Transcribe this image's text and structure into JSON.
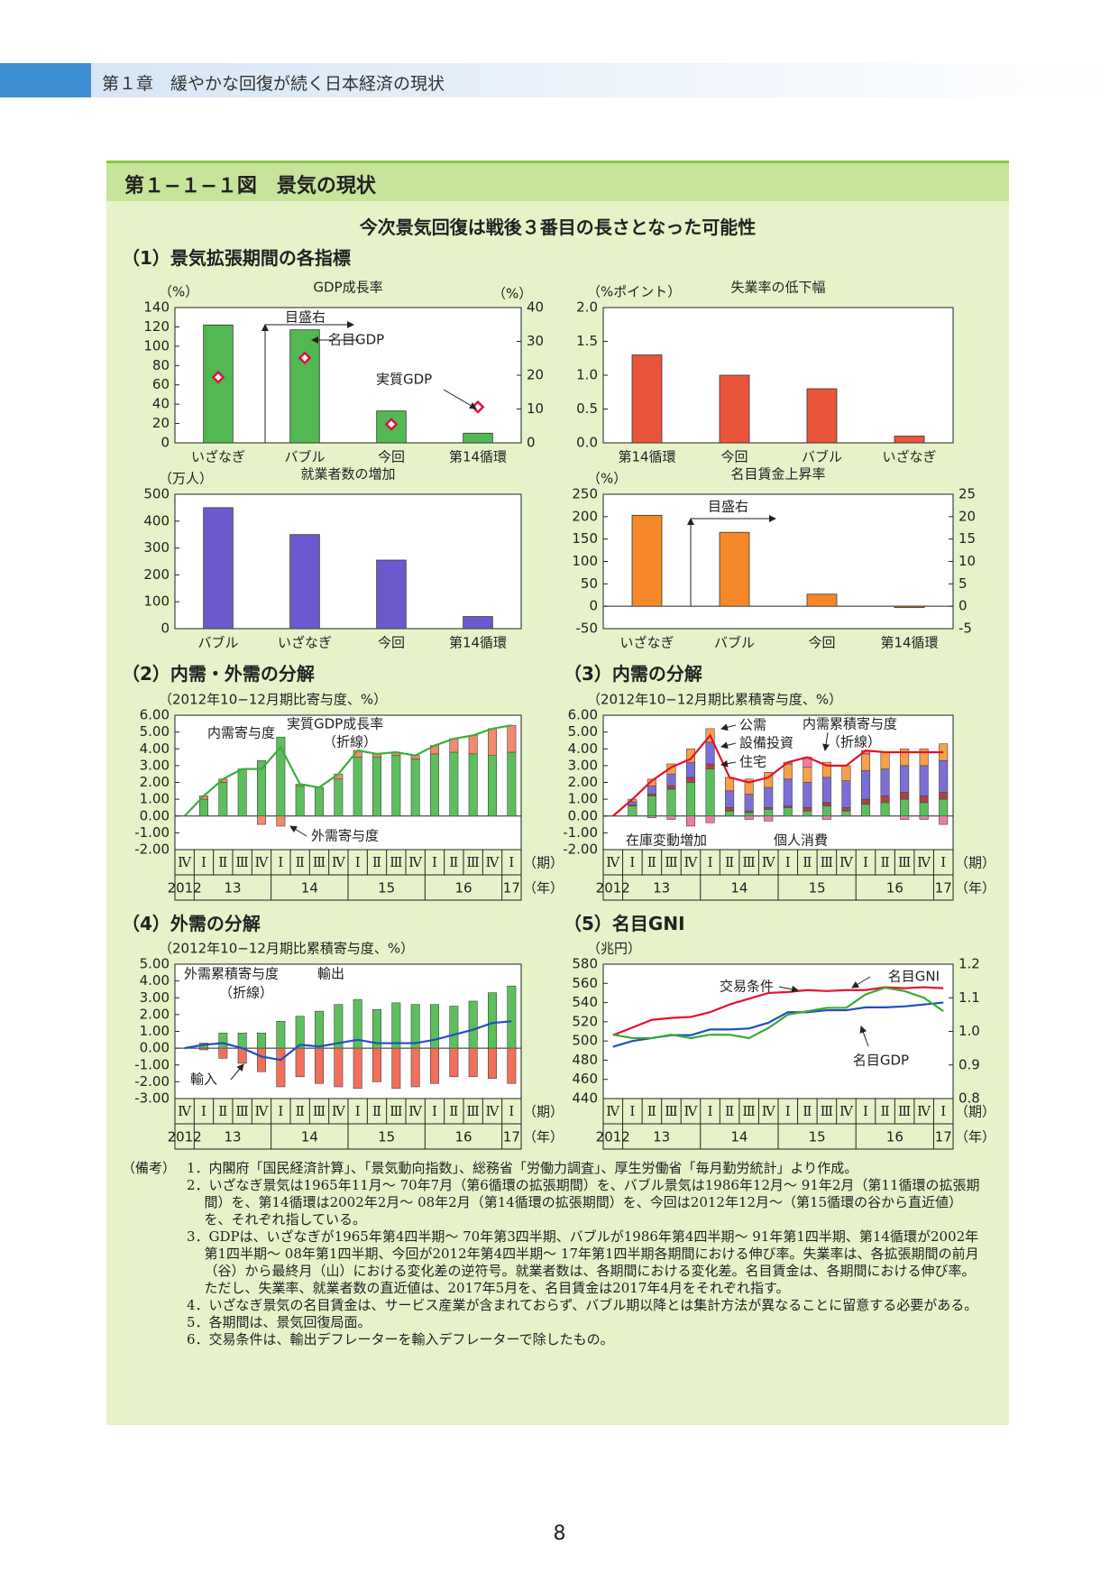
{
  "header": {
    "chapter": "第１章　緩やかな回復が続く日本経済の現状"
  },
  "figure": {
    "title": "第１−１−１図　景気の現状",
    "subtitle": "今次景気回復は戦後３番目の長さとなった可能性"
  },
  "sections": [
    "（1）景気拡張期間の各指標",
    "（2）内需・外需の分解",
    "（3）内需の分解",
    "（4）外需の分解",
    "（5）名目GNI"
  ],
  "chart_data": [
    {
      "type": "bar",
      "title": "GDP成長率",
      "y_unit": "（%）",
      "y2_unit": "（%）",
      "categories": [
        "いざなぎ",
        "バブル",
        "今回",
        "第14循環"
      ],
      "series": [
        {
          "name": "名目GDP",
          "color": "#52b852",
          "values": [
            122,
            117,
            33,
            10
          ]
        },
        {
          "name": "実質GDP",
          "color": "#e0103a",
          "axis": "y2",
          "marker": "diamond",
          "values": [
            19.4,
            25.1,
            5.5,
            10.6
          ]
        }
      ],
      "annotations": [
        "目盛右"
      ],
      "ylim": [
        0,
        140
      ],
      "yticks": [
        0,
        20,
        40,
        60,
        80,
        100,
        120,
        140
      ],
      "y2lim": [
        0,
        40
      ],
      "y2ticks": [
        0,
        10,
        20,
        30,
        40
      ]
    },
    {
      "type": "bar",
      "title": "失業率の低下幅",
      "y_unit": "（%ポイント）",
      "categories": [
        "第14循環",
        "今回",
        "バブル",
        "いざなぎ"
      ],
      "series": [
        {
          "color": "#e8553a",
          "values": [
            1.3,
            1.0,
            0.8,
            0.1
          ]
        }
      ],
      "ylim": [
        0,
        2
      ],
      "yticks": [
        {
          "value": 0,
          "label": "0.0"
        },
        0.5,
        {
          "value": 1,
          "label": "1.0"
        },
        1.5,
        {
          "value": 2,
          "label": "2.0"
        }
      ]
    },
    {
      "type": "bar",
      "title": "就業者数の増加",
      "y_unit": "（万人）",
      "categories": [
        "バブル",
        "いざなぎ",
        "今回",
        "第14循環"
      ],
      "series": [
        {
          "color": "#6a5acd",
          "values": [
            450,
            350,
            255,
            45
          ]
        }
      ],
      "ylim": [
        0,
        500
      ],
      "yticks": [
        0,
        100,
        200,
        300,
        400,
        500
      ]
    },
    {
      "type": "bar",
      "title": "名目賃金上昇率",
      "y_unit": "（%）",
      "categories": [
        "いざなぎ",
        "バブル",
        "今回",
        "第14循環"
      ],
      "series": [
        {
          "color": "#f5892a",
          "values": [
            203,
            165,
            null,
            null
          ]
        },
        {
          "color": "#f5892a",
          "axis": "y2",
          "values": [
            null,
            null,
            2.7,
            -0.3
          ]
        }
      ],
      "annotations": [
        "目盛右"
      ],
      "ylim": [
        -50,
        250
      ],
      "yticks": [
        -50,
        0,
        50,
        100,
        150,
        200,
        250
      ],
      "y2lim": [
        -5,
        25
      ],
      "y2ticks": [
        -5,
        0,
        5,
        10,
        15,
        20,
        25
      ]
    },
    {
      "type": "stacked_bar",
      "y_unit": "（2012年10−12月期比寄与度、%）",
      "categories": [
        "Ⅳ",
        "Ⅰ",
        "Ⅱ",
        "Ⅲ",
        "Ⅳ",
        "Ⅰ",
        "Ⅱ",
        "Ⅲ",
        "Ⅳ",
        "Ⅰ",
        "Ⅱ",
        "Ⅲ",
        "Ⅳ",
        "Ⅰ",
        "Ⅱ",
        "Ⅲ",
        "Ⅳ",
        "Ⅰ"
      ],
      "years": [
        "2012",
        "13",
        "14",
        "15",
        "16",
        "17"
      ],
      "x_unit": "（期）",
      "year_unit": "（年）",
      "series": [
        {
          "name": "内需寄与度",
          "color": "#5cbf5c",
          "values": [
            0,
            1.0,
            2.0,
            2.8,
            3.3,
            4.7,
            1.8,
            1.7,
            2.2,
            3.5,
            3.5,
            3.6,
            3.4,
            3.7,
            3.8,
            3.7,
            3.6,
            3.8
          ]
        },
        {
          "name": "外需寄与度",
          "color": "#f28a6e",
          "values": [
            0,
            0.2,
            0.2,
            0,
            -0.5,
            -0.6,
            0.1,
            0,
            0.3,
            0.4,
            0.2,
            0.2,
            0.2,
            0.5,
            0.8,
            1.1,
            1.6,
            1.6
          ]
        },
        {
          "name": "実質GDP成長率",
          "color": "#3cae3c",
          "kind": "line",
          "values": [
            0,
            1.2,
            2.2,
            2.8,
            2.8,
            4.1,
            1.9,
            1.7,
            2.5,
            3.9,
            3.7,
            3.8,
            3.6,
            4.2,
            4.6,
            4.8,
            5.2,
            5.4
          ]
        }
      ],
      "annotations": [
        "（折線）"
      ],
      "ylim": [
        -2,
        6
      ],
      "yticks": [
        {
          "value": -2,
          "label": "-2.00"
        },
        {
          "value": -1,
          "label": "-1.00"
        },
        {
          "value": 0,
          "label": "0.00"
        },
        {
          "value": 1,
          "label": "1.00"
        },
        {
          "value": 2,
          "label": "2.00"
        },
        {
          "value": 3,
          "label": "3.00"
        },
        {
          "value": 4,
          "label": "4.00"
        },
        {
          "value": 5,
          "label": "5.00"
        },
        {
          "value": 6,
          "label": "6.00"
        }
      ]
    },
    {
      "type": "stacked_bar",
      "y_unit": "（2012年10−12月期比累積寄与度、%）",
      "categories": [
        "Ⅳ",
        "Ⅰ",
        "Ⅱ",
        "Ⅲ",
        "Ⅳ",
        "Ⅰ",
        "Ⅱ",
        "Ⅲ",
        "Ⅳ",
        "Ⅰ",
        "Ⅱ",
        "Ⅲ",
        "Ⅳ",
        "Ⅰ",
        "Ⅱ",
        "Ⅲ",
        "Ⅳ",
        "Ⅰ"
      ],
      "years": [
        "2012",
        "13",
        "14",
        "15",
        "16",
        "17"
      ],
      "x_unit": "（期）",
      "year_unit": "（年）",
      "series": [
        {
          "name": "個人消費",
          "color": "#5cbf5c",
          "values": [
            0,
            0.6,
            1.2,
            1.6,
            2.0,
            2.8,
            0.3,
            0.2,
            0.4,
            0.5,
            0.3,
            0.6,
            0.3,
            0.7,
            0.8,
            1.0,
            0.8,
            1.0
          ]
        },
        {
          "name": "住宅",
          "color": "#b0413e",
          "values": [
            0,
            0.05,
            0.1,
            0.2,
            0.3,
            0.3,
            0.2,
            0.1,
            0.1,
            0.1,
            0.2,
            0.2,
            0.2,
            0.3,
            0.4,
            0.4,
            0.4,
            0.4
          ]
        },
        {
          "name": "設備投資",
          "color": "#7b6fd6",
          "values": [
            0,
            0.2,
            0.5,
            0.7,
            0.9,
            1.3,
            1.0,
            1.0,
            1.2,
            1.6,
            1.5,
            1.5,
            1.6,
            1.7,
            1.6,
            1.6,
            1.8,
            1.9
          ]
        },
        {
          "name": "公需",
          "color": "#f5a04a",
          "values": [
            0,
            0.15,
            0.4,
            0.6,
            0.8,
            0.8,
            0.8,
            0.9,
            0.9,
            0.9,
            0.9,
            0.9,
            0.9,
            1.0,
            1.0,
            1.0,
            1.0,
            1.0
          ]
        },
        {
          "name": "在庫変動増加",
          "color": "#f07aa0",
          "values": [
            0,
            0,
            -0.1,
            -0.2,
            -0.6,
            -0.4,
            0,
            -0.2,
            -0.3,
            0.1,
            0.6,
            -0.2,
            0,
            0.2,
            0,
            -0.2,
            -0.2,
            -0.5
          ]
        },
        {
          "name": "内需累積寄与度",
          "color": "#e8102a",
          "kind": "line",
          "values": [
            0,
            1.0,
            2.1,
            2.9,
            3.4,
            4.8,
            2.3,
            2.0,
            2.3,
            3.2,
            3.5,
            3.0,
            3.0,
            3.9,
            3.8,
            3.8,
            3.8,
            3.8
          ]
        }
      ],
      "annotations": [
        "（折線）"
      ],
      "ylim": [
        -2,
        6
      ],
      "yticks": [
        {
          "value": -2,
          "label": "-2.00"
        },
        {
          "value": -1,
          "label": "-1.00"
        },
        {
          "value": 0,
          "label": "0.00"
        },
        {
          "value": 1,
          "label": "1.00"
        },
        {
          "value": 2,
          "label": "2.00"
        },
        {
          "value": 3,
          "label": "3.00"
        },
        {
          "value": 4,
          "label": "4.00"
        },
        {
          "value": 5,
          "label": "5.00"
        },
        {
          "value": 6,
          "label": "6.00"
        }
      ]
    },
    {
      "type": "stacked_bar",
      "y_unit": "（2012年10−12月期比累積寄与度、%）",
      "categories": [
        "Ⅳ",
        "Ⅰ",
        "Ⅱ",
        "Ⅲ",
        "Ⅳ",
        "Ⅰ",
        "Ⅱ",
        "Ⅲ",
        "Ⅳ",
        "Ⅰ",
        "Ⅱ",
        "Ⅲ",
        "Ⅳ",
        "Ⅰ",
        "Ⅱ",
        "Ⅲ",
        "Ⅳ",
        "Ⅰ"
      ],
      "years": [
        "2012",
        "13",
        "14",
        "15",
        "16",
        "17"
      ],
      "x_unit": "（期）",
      "year_unit": "（年）",
      "series": [
        {
          "name": "輸出",
          "color": "#5cbf5c",
          "values": [
            0,
            0.3,
            0.9,
            0.9,
            0.9,
            1.6,
            1.9,
            2.2,
            2.6,
            2.9,
            2.3,
            2.7,
            2.6,
            2.6,
            2.5,
            2.8,
            3.3,
            3.7
          ]
        },
        {
          "name": "輸入",
          "color": "#f0705a",
          "values": [
            0,
            -0.1,
            -0.6,
            -0.9,
            -1.4,
            -2.3,
            -1.7,
            -2.1,
            -2.3,
            -2.4,
            -2.0,
            -2.4,
            -2.3,
            -2.1,
            -1.7,
            -1.7,
            -1.8,
            -2.1
          ]
        },
        {
          "name": "外需累積寄与度",
          "color": "#2050c0",
          "kind": "line",
          "values": [
            0,
            0.2,
            0.3,
            0,
            -0.5,
            -0.7,
            0.2,
            0.1,
            0.3,
            0.5,
            0.3,
            0.3,
            0.3,
            0.5,
            0.8,
            1.1,
            1.5,
            1.6
          ]
        }
      ],
      "annotations": [
        "（折線）"
      ],
      "ylim": [
        -3,
        5
      ],
      "yticks": [
        {
          "value": -3,
          "label": "-3.00"
        },
        {
          "value": -2,
          "label": "-2.00"
        },
        {
          "value": -1,
          "label": "-1.00"
        },
        {
          "value": 0,
          "label": "0.00"
        },
        {
          "value": 1,
          "label": "1.00"
        },
        {
          "value": 2,
          "label": "2.00"
        },
        {
          "value": 3,
          "label": "3.00"
        },
        {
          "value": 4,
          "label": "4.00"
        },
        {
          "value": 5,
          "label": "5.00"
        }
      ]
    },
    {
      "type": "line",
      "y_unit": "（兆円）",
      "categories": [
        "Ⅳ",
        "Ⅰ",
        "Ⅱ",
        "Ⅲ",
        "Ⅳ",
        "Ⅰ",
        "Ⅱ",
        "Ⅲ",
        "Ⅳ",
        "Ⅰ",
        "Ⅱ",
        "Ⅲ",
        "Ⅳ",
        "Ⅰ",
        "Ⅱ",
        "Ⅲ",
        "Ⅳ",
        "Ⅰ"
      ],
      "years": [
        "2012",
        "13",
        "14",
        "15",
        "16",
        "17"
      ],
      "x_unit": "（期）",
      "year_unit": "（年）",
      "series": [
        {
          "name": "名目GNI",
          "color": "#e8102a",
          "values": [
            506,
            514,
            522,
            524,
            525,
            530,
            538,
            544,
            550,
            551,
            553,
            552,
            553,
            553,
            556,
            555,
            556,
            555
          ]
        },
        {
          "name": "名目GDP",
          "color": "#1f4fbf",
          "values": [
            494,
            500,
            503,
            506,
            506,
            512,
            512,
            513,
            519,
            530,
            530,
            532,
            532,
            535,
            535,
            536,
            538,
            540
          ]
        },
        {
          "name": "交易条件",
          "color": "#3aaa35",
          "axis": "y2",
          "values": [
            0.99,
            0.98,
            0.98,
            0.99,
            0.98,
            0.99,
            0.99,
            0.98,
            1.01,
            1.05,
            1.06,
            1.07,
            1.07,
            1.11,
            1.13,
            1.12,
            1.1,
            1.06
          ]
        }
      ],
      "ylim": [
        440,
        580
      ],
      "yticks": [
        440,
        460,
        480,
        500,
        520,
        540,
        560,
        580
      ],
      "y2lim": [
        0.8,
        1.2
      ],
      "y2ticks": [
        0.8,
        0.9,
        {
          "value": 1,
          "label": "1.0"
        },
        1.1,
        1.2
      ]
    }
  ],
  "notes": {
    "label": "（備考）",
    "items": [
      "1．内閣府「国民経済計算」、「景気動向指数」、総務省「労働力調査」、厚生労働省「毎月勤労統計」より作成。",
      "2．いざなぎ景気は1965年11月〜 70年7月（第6循環の拡張期間）を、バブル景気は1986年12月〜 91年2月（第11循環の拡張期間）を、第14循環は2002年2月〜 08年2月（第14循環の拡張期間）を、今回は2012年12月〜（第15循環の谷から直近値）を、それぞれ指している。",
      "3．GDPは、いざなぎが1965年第4四半期〜 70年第3四半期、バブルが1986年第4四半期〜 91年第1四半期、第14循環が2002年第1四半期〜 08年第1四半期、今回が2012年第4四半期〜 17年第1四半期各期間における伸び率。失業率は、各拡張期間の前月（谷）から最終月（山）における変化差の逆符号。就業者数は、各期間における変化差。名目賃金は、各期間における伸び率。ただし、失業率、就業者数の直近値は、2017年5月を、名目賃金は2017年4月をそれぞれ指す。",
      "4．いざなぎ景気の名目賃金は、サービス産業が含まれておらず、バブル期以降とは集計方法が異なることに留意する必要がある。",
      "5．各期間は、景気回復局面。",
      "6．交易条件は、輸出デフレーターを輸入デフレーターで除したもの。"
    ]
  },
  "page_number": "8"
}
